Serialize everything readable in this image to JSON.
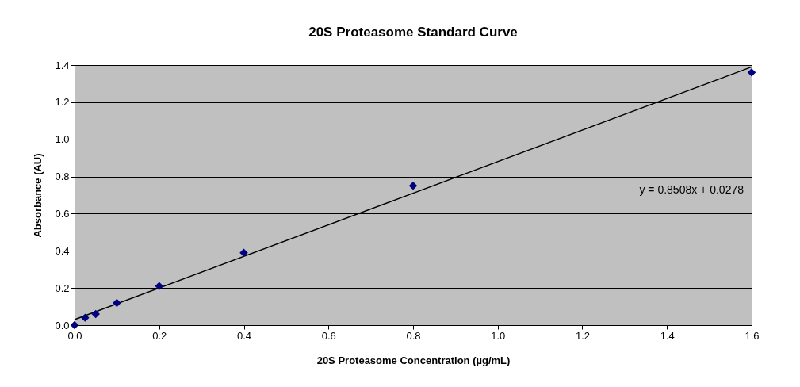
{
  "chart_data": {
    "type": "scatter",
    "title": "20S Proteasome Standard Curve",
    "xlabel": "20S Proteasome Concentration (µg/mL)",
    "ylabel": "Absorbance (AU)",
    "x": [
      0,
      0.025,
      0.05,
      0.1,
      0.2,
      0.4,
      0.8,
      1.6
    ],
    "series": [
      {
        "color": "#000080",
        "marker": "diamond",
        "values": [
          0,
          0.04,
          0.06,
          0.12,
          0.21,
          0.39,
          0.75,
          1.36
        ]
      },
      {
        "type": "line",
        "color": "#000000",
        "marker": "none",
        "x": [
          0,
          1.6
        ],
        "values": [
          0.03,
          1.39
        ]
      }
    ],
    "annotations": [
      "y = 0.8508x + 0.0278"
    ],
    "xlim": [
      0,
      1.6
    ],
    "xticks": [
      {
        "value": 0,
        "label": "0.0"
      },
      0.2,
      0.4,
      0.6,
      0.8,
      {
        "value": 1,
        "label": "1.0"
      },
      1.2,
      1.4,
      1.6
    ],
    "ylim": [
      0,
      1.4
    ],
    "yticks": [
      {
        "value": 0,
        "label": "0.0"
      },
      0.2,
      0.4,
      0.6,
      0.8,
      {
        "value": 1,
        "label": "1.0"
      },
      1.2,
      1.4
    ],
    "grid": "y"
  }
}
